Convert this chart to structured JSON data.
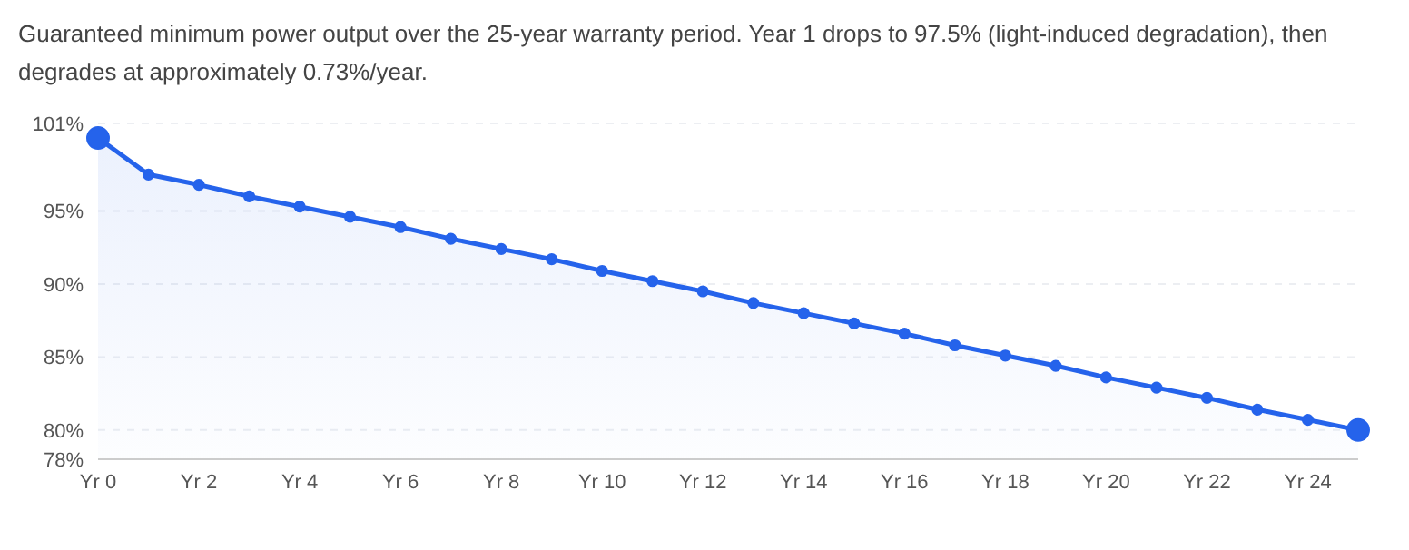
{
  "chart_data": {
    "type": "area",
    "title": "Guaranteed minimum power output over the 25-year warranty period. Year 1 drops to 97.5% (light-induced degradation), then degrades at approximately 0.73%/year.",
    "categories": [
      "Yr 0",
      null,
      "Yr 2",
      null,
      "Yr 4",
      null,
      "Yr 6",
      null,
      "Yr 8",
      null,
      "Yr 10",
      null,
      "Yr 12",
      null,
      "Yr 14",
      null,
      "Yr 16",
      null,
      "Yr 18",
      null,
      "Yr 20",
      null,
      "Yr 22",
      null,
      "Yr 24",
      null
    ],
    "series": [
      {
        "color": "#2563eb",
        "values": [
          100,
          97.5,
          96.8,
          96.0,
          95.3,
          94.6,
          93.9,
          93.1,
          92.4,
          91.7,
          90.9,
          90.2,
          89.5,
          88.7,
          88.0,
          87.3,
          86.6,
          85.8,
          85.1,
          84.4,
          83.6,
          82.9,
          82.2,
          81.4,
          80.7,
          80.0
        ]
      }
    ],
    "ylim": [
      78,
      101
    ],
    "yticks": [
      {
        "value": 78,
        "label": "78%"
      },
      {
        "value": 80,
        "label": "80%"
      },
      {
        "value": 85,
        "label": "85%"
      },
      {
        "value": 90,
        "label": "90%"
      },
      {
        "value": 95,
        "label": "95%"
      },
      {
        "value": 101,
        "label": "101%"
      }
    ],
    "grid": "y",
    "marker": "circle"
  }
}
